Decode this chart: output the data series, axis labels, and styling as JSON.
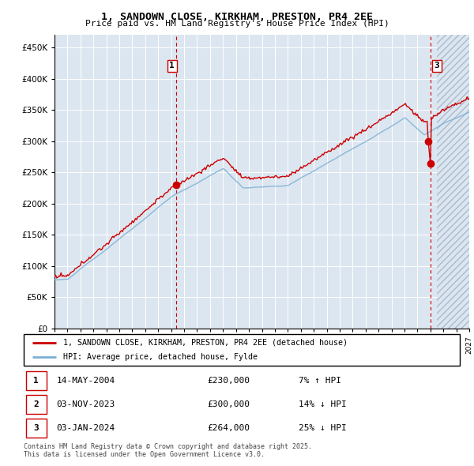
{
  "title": "1, SANDOWN CLOSE, KIRKHAM, PRESTON, PR4 2EE",
  "subtitle": "Price paid vs. HM Land Registry's House Price Index (HPI)",
  "ytick_values": [
    0,
    50000,
    100000,
    150000,
    200000,
    250000,
    300000,
    350000,
    400000,
    450000
  ],
  "ylim": [
    0,
    470000
  ],
  "xlim_start": 1995.0,
  "xlim_end": 2027.0,
  "background_color": "#dce6f0",
  "grid_color": "#ffffff",
  "sale1_date": 2004.37,
  "sale1_price": 230000,
  "sale2_date": 2023.84,
  "sale2_price": 300000,
  "sale3_date": 2024.01,
  "sale3_price": 264000,
  "hatch_start": 2024.5,
  "marker_color": "#cc0000",
  "dashed_line_color": "#cc0000",
  "legend_label_red": "1, SANDOWN CLOSE, KIRKHAM, PRESTON, PR4 2EE (detached house)",
  "legend_label_blue": "HPI: Average price, detached house, Fylde",
  "table_entries": [
    {
      "num": 1,
      "date": "14-MAY-2004",
      "price": "£230,000",
      "pct": "7% ↑ HPI"
    },
    {
      "num": 2,
      "date": "03-NOV-2023",
      "price": "£300,000",
      "pct": "14% ↓ HPI"
    },
    {
      "num": 3,
      "date": "03-JAN-2024",
      "price": "£264,000",
      "pct": "25% ↓ HPI"
    }
  ],
  "footer": "Contains HM Land Registry data © Crown copyright and database right 2025.\nThis data is licensed under the Open Government Licence v3.0.",
  "red_line_color": "#cc0000",
  "blue_line_color": "#7bafd4"
}
